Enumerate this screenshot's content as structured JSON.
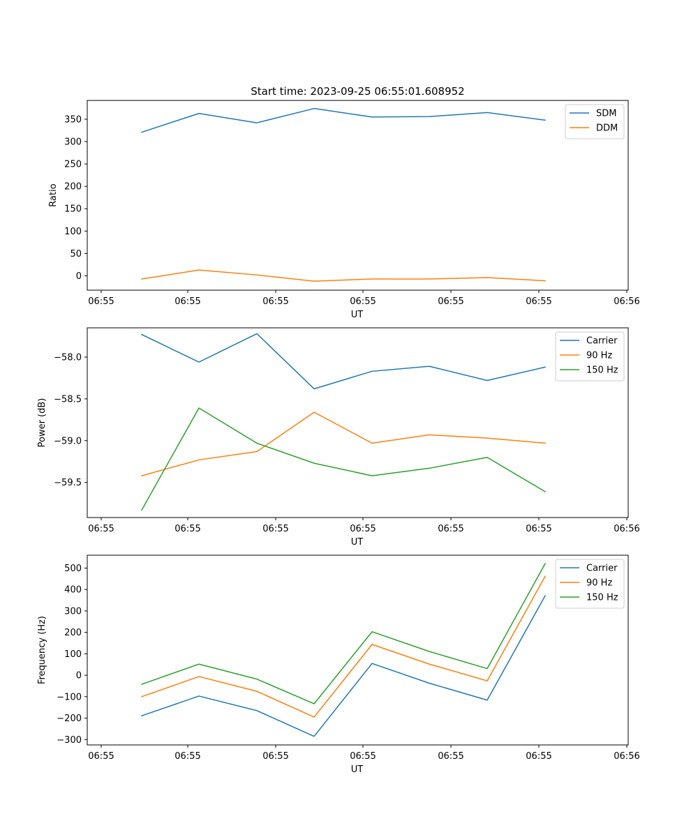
{
  "chart_data": [
    {
      "type": "line",
      "title": "Start time: 2023-09-25 06:55:01.608952",
      "xlabel": "UT",
      "ylabel": "Ratio",
      "x_ticks": [
        "06:55",
        "06:55",
        "06:55",
        "06:55",
        "06:55",
        "06:55",
        "06:56"
      ],
      "y_ticks": [
        "0",
        "50",
        "100",
        "150",
        "200",
        "250",
        "300",
        "350"
      ],
      "ylim": [
        -32,
        392
      ],
      "legend": "top-right",
      "series": [
        {
          "name": "SDM",
          "color": "#1f77b4",
          "values": [
            321,
            363,
            342,
            374,
            355,
            356,
            365,
            348
          ]
        },
        {
          "name": "DDM",
          "color": "#ff7f0e",
          "values": [
            -7,
            13,
            2,
            -12,
            -7,
            -7,
            -4,
            -11
          ]
        }
      ]
    },
    {
      "type": "line",
      "title": "",
      "xlabel": "UT",
      "ylabel": "Power (dB)",
      "x_ticks": [
        "06:55",
        "06:55",
        "06:55",
        "06:55",
        "06:55",
        "06:55",
        "06:56"
      ],
      "y_ticks": [
        "−58.0",
        "−58.5",
        "−59.0",
        "−59.5"
      ],
      "ylim": [
        -59.92,
        -57.65
      ],
      "legend": "top-right",
      "series": [
        {
          "name": "Carrier",
          "color": "#1f77b4",
          "values": [
            -57.73,
            -58.06,
            -57.72,
            -58.38,
            -58.17,
            -58.11,
            -58.28,
            -58.12
          ]
        },
        {
          "name": "90 Hz",
          "color": "#ff7f0e",
          "values": [
            -59.42,
            -59.23,
            -59.13,
            -58.66,
            -59.03,
            -58.93,
            -58.97,
            -59.03
          ]
        },
        {
          "name": "150 Hz",
          "color": "#2ca02c",
          "values": [
            -59.83,
            -58.61,
            -59.03,
            -59.27,
            -59.42,
            -59.33,
            -59.2,
            -59.61
          ]
        }
      ]
    },
    {
      "type": "line",
      "title": "",
      "xlabel": "UT",
      "ylabel": "Frequency (Hz)",
      "x_ticks": [
        "06:55",
        "06:55",
        "06:55",
        "06:55",
        "06:55",
        "06:55",
        "06:56"
      ],
      "y_ticks": [
        "−300",
        "−200",
        "−100",
        "0",
        "100",
        "200",
        "300",
        "400",
        "500"
      ],
      "ylim": [
        -325,
        560
      ],
      "legend": "top-right",
      "series": [
        {
          "name": "Carrier",
          "color": "#1f77b4",
          "values": [
            -189,
            -97,
            -165,
            -285,
            55,
            -37,
            -116,
            371
          ]
        },
        {
          "name": "90 Hz",
          "color": "#ff7f0e",
          "values": [
            -100,
            -6,
            -75,
            -195,
            144,
            52,
            -26,
            462
          ]
        },
        {
          "name": "150 Hz",
          "color": "#2ca02c",
          "values": [
            -42,
            52,
            -18,
            -133,
            203,
            111,
            31,
            521
          ]
        }
      ]
    }
  ]
}
